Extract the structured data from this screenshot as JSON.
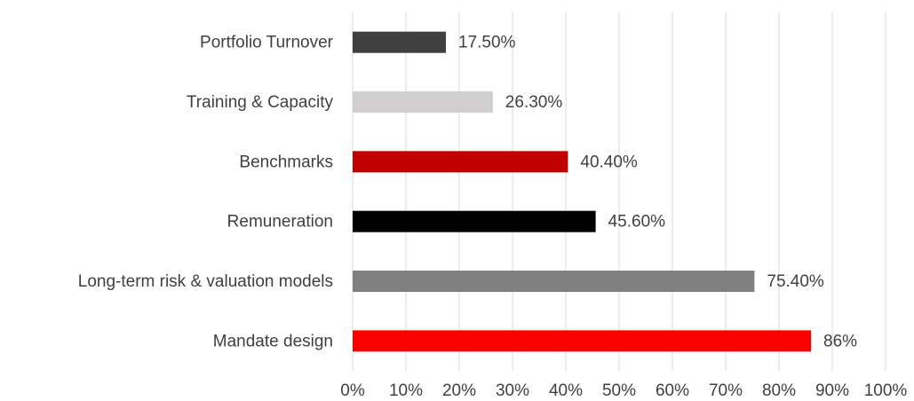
{
  "chart_data": {
    "type": "bar",
    "orientation": "horizontal",
    "categories": [
      "Portfolio Turnover",
      "Training & Capacity",
      "Benchmarks",
      "Remuneration",
      "Long-term risk & valuation models",
      "Mandate design"
    ],
    "values": [
      17.5,
      26.3,
      40.4,
      45.6,
      75.4,
      86
    ],
    "value_labels": [
      "17.50%",
      "26.30%",
      "40.40%",
      "45.60%",
      "75.40%",
      "86%"
    ],
    "colors": [
      "#404040",
      "#d0cece",
      "#c00000",
      "#000000",
      "#808080",
      "#ff0000"
    ],
    "xlim": [
      0,
      100
    ],
    "xticks": [
      {
        "value": 0,
        "label": "0%"
      },
      {
        "value": 10,
        "label": "10%"
      },
      {
        "value": 20,
        "label": "20%"
      },
      {
        "value": 30,
        "label": "30%"
      },
      {
        "value": 40,
        "label": "40%"
      },
      {
        "value": 50,
        "label": "50%"
      },
      {
        "value": 60,
        "label": "60%"
      },
      {
        "value": 70,
        "label": "70%"
      },
      {
        "value": 80,
        "label": "80%"
      },
      {
        "value": 90,
        "label": "90%"
      },
      {
        "value": 100,
        "label": "100%"
      }
    ],
    "grid": true
  }
}
